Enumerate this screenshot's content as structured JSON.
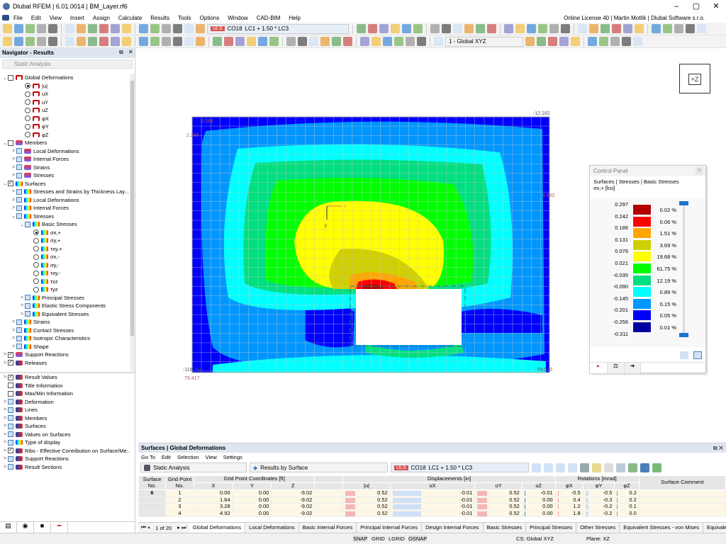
{
  "app": {
    "title": "Dlubal RFEM | 6.01.0014 | BM_Layer.rf6",
    "license": "Online License 40 | Martin Motlík | Dlubal Software s.r.o."
  },
  "menu": [
    "File",
    "Edit",
    "View",
    "Insert",
    "Assign",
    "Calculate",
    "Results",
    "Tools",
    "Options",
    "Window",
    "CAD-BIM",
    "Help"
  ],
  "toolbar": {
    "uls": "ULS",
    "combo": "CO18",
    "combo_desc": "LC1 + 1.50 * LC3",
    "view_cs": "1 - Global XYZ"
  },
  "navigator": {
    "title": "Navigator - Results",
    "analysis": "Static Analysis",
    "tree": [
      {
        "l": 0,
        "e": "v",
        "c": "cb",
        "s": "",
        "i": "def",
        "t": "Global Deformations"
      },
      {
        "l": 2,
        "c": "rd",
        "s": "on",
        "i": "def",
        "t": "|u|"
      },
      {
        "l": 2,
        "c": "rd",
        "i": "def",
        "t": "uX"
      },
      {
        "l": 2,
        "c": "rd",
        "i": "def",
        "t": "uY"
      },
      {
        "l": 2,
        "c": "rd",
        "i": "def",
        "t": "uZ"
      },
      {
        "l": 2,
        "c": "rd",
        "i": "def",
        "t": "φX"
      },
      {
        "l": 2,
        "c": "rd",
        "i": "def",
        "t": "φY"
      },
      {
        "l": 2,
        "c": "rd",
        "i": "def",
        "t": "φZ"
      },
      {
        "l": 0,
        "e": "v",
        "c": "cb",
        "i": "mem",
        "t": "Members"
      },
      {
        "l": 1,
        "e": ">",
        "c": "cbb",
        "i": "mem",
        "t": "Local Deformations"
      },
      {
        "l": 1,
        "e": ">",
        "c": "cbb",
        "i": "mem",
        "t": "Internal Forces"
      },
      {
        "l": 1,
        "e": ">",
        "c": "cbb",
        "i": "mem",
        "t": "Strains"
      },
      {
        "l": 1,
        "e": ">",
        "c": "cbb",
        "i": "mem",
        "t": "Stresses"
      },
      {
        "l": 0,
        "e": "v",
        "c": "cb",
        "s": "✓",
        "i": "surf",
        "t": "Surfaces"
      },
      {
        "l": 1,
        "e": ">",
        "c": "cbb",
        "i": "surf",
        "t": "Stresses and Strains by Thickness Lay..."
      },
      {
        "l": 1,
        "e": ">",
        "c": "cbb",
        "i": "surf",
        "t": "Local Deformations"
      },
      {
        "l": 1,
        "e": ">",
        "c": "cbb",
        "i": "surf",
        "t": "Internal Forces"
      },
      {
        "l": 1,
        "e": "v",
        "c": "cbb",
        "i": "surf",
        "t": "Stresses"
      },
      {
        "l": 2,
        "e": "v",
        "c": "cbb",
        "i": "surf",
        "t": "Basic Stresses"
      },
      {
        "l": 3,
        "c": "rd",
        "s": "on",
        "i": "surf",
        "t": "σx,+"
      },
      {
        "l": 3,
        "c": "rd",
        "i": "surf",
        "t": "σy,+"
      },
      {
        "l": 3,
        "c": "rd",
        "i": "surf",
        "t": "τxy,+"
      },
      {
        "l": 3,
        "c": "rd",
        "i": "surf",
        "t": "σx,-"
      },
      {
        "l": 3,
        "c": "rd",
        "i": "surf",
        "t": "σy,-"
      },
      {
        "l": 3,
        "c": "rd",
        "i": "surf",
        "t": "τxy,-"
      },
      {
        "l": 3,
        "c": "rd",
        "i": "surf",
        "t": "τxz"
      },
      {
        "l": 3,
        "c": "rd",
        "i": "surf",
        "t": "τyz"
      },
      {
        "l": 2,
        "e": ">",
        "c": "cbb",
        "i": "surf",
        "t": "Principal Stresses"
      },
      {
        "l": 2,
        "e": ">",
        "c": "cbb",
        "i": "surf",
        "t": "Elastic Stress Components"
      },
      {
        "l": 2,
        "e": ">",
        "c": "cbb",
        "i": "surf",
        "t": "Equivalent Stresses"
      },
      {
        "l": 1,
        "e": ">",
        "c": "cbb",
        "i": "surf",
        "t": "Strains"
      },
      {
        "l": 1,
        "e": ">",
        "c": "cbb",
        "i": "surf",
        "t": "Contact Stresses"
      },
      {
        "l": 1,
        "e": ">",
        "c": "cbb",
        "i": "surf",
        "t": "Isotropic Characteristics"
      },
      {
        "l": 1,
        "e": ">",
        "c": "cbb",
        "i": "surf",
        "t": "Shape"
      },
      {
        "l": 0,
        "e": ">",
        "c": "cb",
        "s": "✓",
        "i": "mem",
        "t": "Support Reactions"
      },
      {
        "l": 0,
        "e": ">",
        "c": "cb",
        "s": "✓",
        "i": "disp",
        "t": "Releases"
      }
    ],
    "tree2": [
      {
        "l": 0,
        "e": ">",
        "c": "cb",
        "s": "✓",
        "i": "disp",
        "t": "Result Values"
      },
      {
        "l": 0,
        "c": "cb",
        "i": "disp",
        "t": "Title Information"
      },
      {
        "l": 0,
        "c": "cb",
        "i": "disp",
        "t": "Max/Min Information"
      },
      {
        "l": 0,
        "e": ">",
        "c": "cbb",
        "i": "disp",
        "t": "Deformation"
      },
      {
        "l": 0,
        "e": ">",
        "c": "cbb",
        "i": "disp",
        "t": "Lines"
      },
      {
        "l": 0,
        "e": ">",
        "c": "cbb",
        "i": "disp",
        "t": "Members"
      },
      {
        "l": 0,
        "e": ">",
        "c": "cbb",
        "i": "disp",
        "t": "Surfaces"
      },
      {
        "l": 0,
        "e": ">",
        "c": "cbb",
        "i": "disp",
        "t": "Values on Surfaces"
      },
      {
        "l": 0,
        "e": ">",
        "c": "cbb",
        "i": "surf",
        "t": "Type of display"
      },
      {
        "l": 0,
        "e": ">",
        "c": "cb",
        "s": "✓",
        "i": "disp",
        "t": "Ribs - Effective Contribution on Surface/Me..."
      },
      {
        "l": 0,
        "e": ">",
        "c": "cbb",
        "i": "disp",
        "t": "Support Reactions"
      },
      {
        "l": 0,
        "e": ">",
        "c": "cbb",
        "i": "disp",
        "t": "Result Sections"
      }
    ]
  },
  "viewport": {
    "view_cube": "+Z",
    "labels": {
      "top_left": "0.264",
      "left": "2.245",
      "top_right": "-12.162",
      "right": "4.662",
      "bottom_left": "-118.764",
      "bottom_left2": "79.417",
      "bottom_right": "-79.070"
    },
    "axis_x": "x",
    "axis_y": "y"
  },
  "control_panel": {
    "title": "Control Panel",
    "path": "Surfaces | Stresses | Basic Stresses",
    "quantity": "σx,+ [ksi]",
    "values": [
      "0.297",
      "0.242",
      "0.186",
      "0.131",
      "0.076",
      "0.021",
      "-0.035",
      "-0.090",
      "-0.145",
      "-0.201",
      "-0.256",
      "-0.311"
    ],
    "colors": [
      "#b00000",
      "#ff0000",
      "#ffa500",
      "#d0d000",
      "#ffff00",
      "#00ff00",
      "#00e080",
      "#00ffff",
      "#0096ff",
      "#0000ff",
      "#0000a0"
    ],
    "percents": [
      "0.02 %",
      "0.06 %",
      "1.51 %",
      "3.69 %",
      "19.68 %",
      "61.75 %",
      "12.19 %",
      "0.89 %",
      "0.15 %",
      "0.05 %",
      "0.01 %"
    ]
  },
  "table": {
    "title": "Surfaces | Global Deformations",
    "menu": [
      "Go To",
      "Edit",
      "Selection",
      "View",
      "Settings"
    ],
    "analysis": "Static Analysis",
    "results_by": "Results by Surface",
    "uls": "ULS",
    "combo": "CO18",
    "combo_desc": "LC1 + 1.50 * LC3",
    "groups": {
      "coords": "Grid Point Coordinates [ft]",
      "disp": "Displacements [in]",
      "rot": "Rotations [mrad]"
    },
    "headers": {
      "surface": "Surface No.",
      "grid": "Grid Point No.",
      "x": "X",
      "y": "Y",
      "z": "Z",
      "u": "|u|",
      "ux": "uX",
      "uy": "uY",
      "uz": "uZ",
      "px": "φX",
      "py": "φY",
      "pz": "φZ",
      "comment": "Surface Comment"
    },
    "rows": [
      {
        "s": "6",
        "g": "1",
        "x": "0.00",
        "y": "0.00",
        "z": "-9.02",
        "u": "0.52",
        "ux": "-0.01",
        "uy": "0.52",
        "uz": "-0.01",
        "px": "-0.5",
        "py": "-0.5",
        "pz": "0.2"
      },
      {
        "s": "",
        "g": "2",
        "x": "1.64",
        "y": "0.00",
        "z": "-9.02",
        "u": "0.52",
        "ux": "-0.01",
        "uy": "0.52",
        "uz": "0.00",
        "px": "0.4",
        "py": "-0.3",
        "pz": "0.2"
      },
      {
        "s": "",
        "g": "3",
        "x": "3.28",
        "y": "0.00",
        "z": "-9.02",
        "u": "0.52",
        "ux": "-0.01",
        "uy": "0.52",
        "uz": "0.00",
        "px": "1.2",
        "py": "-0.2",
        "pz": "0.1"
      },
      {
        "s": "",
        "g": "4",
        "x": "4.92",
        "y": "0.00",
        "z": "-9.02",
        "u": "0.52",
        "ux": "-0.01",
        "uy": "0.52",
        "uz": "0.00",
        "px": "1.8",
        "py": "-0.2",
        "pz": "0.0"
      }
    ],
    "pager": "1 of 20",
    "tabs": [
      "Global Deformations",
      "Local Deformations",
      "Basic Internal Forces",
      "Principal Internal Forces",
      "Design Internal Forces",
      "Basic Stresses",
      "Principal Stresses",
      "Other Stresses",
      "Equivalent Stresses - von Mises",
      "Equivaler"
    ]
  },
  "status": {
    "snap": "SNAP",
    "grid": "GRID",
    "lgrid": "LGRID",
    "osnap": "OSNAP",
    "cs": "CS: Global XYZ",
    "plane": "Plane: XZ"
  }
}
